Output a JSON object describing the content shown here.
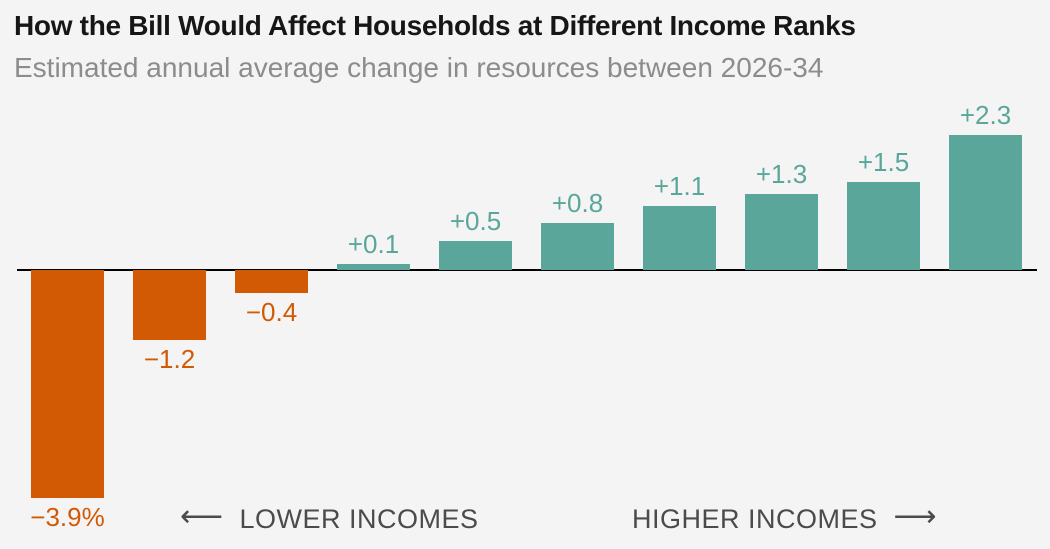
{
  "chart_data": {
    "type": "bar",
    "title": "How the Bill Would Affect Households at Different Income Ranks",
    "subtitle": "Estimated annual average change in resources between 2026-34",
    "unit": "percent",
    "values": [
      -3.9,
      -1.2,
      -0.4,
      0.1,
      0.5,
      0.8,
      1.1,
      1.3,
      1.5,
      2.3
    ],
    "labels": [
      "−3.9%",
      "−1.2",
      "−0.4",
      "+0.1",
      "+0.5",
      "+0.8",
      "+1.1",
      "+1.3",
      "+1.5",
      "+2.3"
    ],
    "ylim": [
      -4.0,
      2.5
    ],
    "grid": false,
    "value_labels_shown": true,
    "legend": "none",
    "negative_color": "#d25a05",
    "positive_color": "#5ba69a",
    "axis_color": "#000000",
    "direction_labels": {
      "lower": {
        "arrow": "⟵",
        "label": "LOWER INCOMES"
      },
      "higher": {
        "label": "HIGHER INCOMES",
        "arrow": "⟶"
      }
    }
  },
  "colors": {
    "background": "#f4f4f4",
    "title_text": "#161616",
    "subtitle_text": "#8c8c8c",
    "direction_text": "#4b4b4b"
  }
}
